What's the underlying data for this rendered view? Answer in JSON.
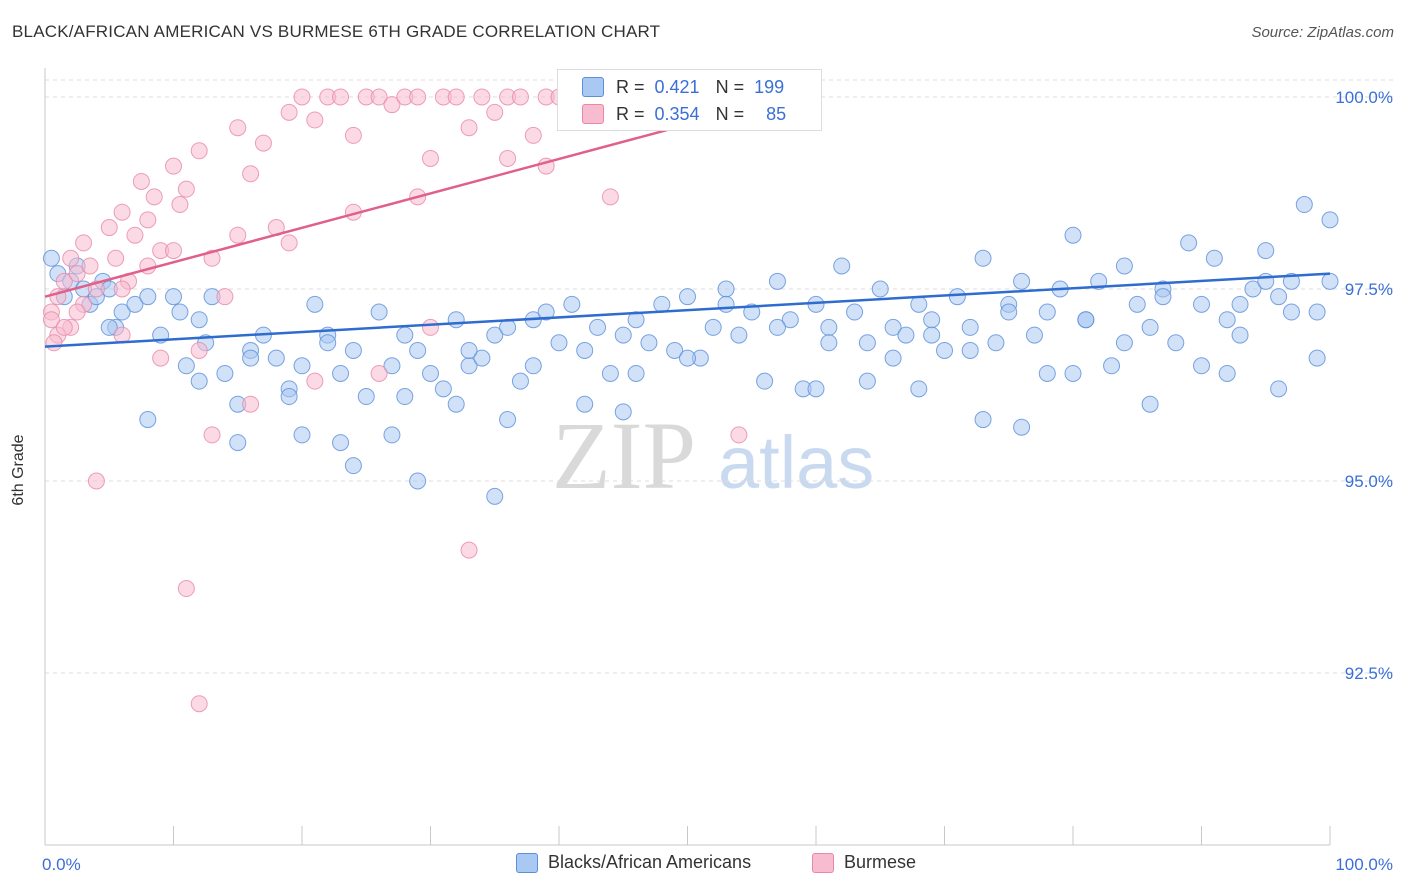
{
  "header": {
    "title": "BLACK/AFRICAN AMERICAN VS BURMESE 6TH GRADE CORRELATION CHART",
    "source": "Source: ZipAtlas.com"
  },
  "watermark": {
    "zip": "ZIP",
    "atlas": "atlas"
  },
  "colors": {
    "blue_fill": "#a9c8f2",
    "blue_stroke": "#5b8fd9",
    "blue_line": "#2e6ccf",
    "pink_fill": "#f8bcd0",
    "pink_stroke": "#e888a6",
    "pink_line": "#e0608a",
    "tick_label": "#3a6fd8"
  },
  "legend": {
    "rows": [
      {
        "r_label": "R =",
        "r_value": "0.421",
        "n_label": "N =",
        "n_value": "199",
        "color": "#a9c8f2"
      },
      {
        "r_label": "R =",
        "r_value": "0.354",
        "n_label": "N =",
        "n_value": "85",
        "color": "#f8bcd0"
      }
    ]
  },
  "chart_data": {
    "type": "scatter",
    "title": "BLACK/AFRICAN AMERICAN VS BURMESE 6TH GRADE CORRELATION CHART",
    "xlabel": "",
    "ylabel": "6th Grade",
    "xlim": [
      0,
      100
    ],
    "ylim": [
      90.0,
      100.4
    ],
    "x_tick_labels": [
      "0.0%",
      "100.0%"
    ],
    "y_ticks": [
      92.5,
      95.0,
      97.5,
      100.0
    ],
    "y_tick_labels": [
      "92.5%",
      "95.0%",
      "97.5%",
      "100.0%"
    ],
    "grid": true,
    "legend_placement": "top-center",
    "series": [
      {
        "name": "Blacks/African Americans",
        "color": "#a9c8f2",
        "trend": {
          "x": [
            0,
            100
          ],
          "y": [
            96.75,
            97.7
          ]
        },
        "points": [
          [
            0.5,
            97.9
          ],
          [
            1,
            97.7
          ],
          [
            1.5,
            97.4
          ],
          [
            2,
            97.6
          ],
          [
            2.5,
            97.8
          ],
          [
            3,
            97.5
          ],
          [
            3.5,
            97.3
          ],
          [
            4,
            97.4
          ],
          [
            4.5,
            97.6
          ],
          [
            5,
            97.5
          ],
          [
            5.5,
            97.0
          ],
          [
            6,
            97.2
          ],
          [
            7,
            97.3
          ],
          [
            8,
            97.4
          ],
          [
            9,
            96.9
          ],
          [
            10,
            97.4
          ],
          [
            10.5,
            97.2
          ],
          [
            11,
            96.5
          ],
          [
            12,
            97.1
          ],
          [
            12.5,
            96.8
          ],
          [
            13,
            97.4
          ],
          [
            14,
            96.4
          ],
          [
            15,
            96.0
          ],
          [
            16,
            96.7
          ],
          [
            17,
            96.9
          ],
          [
            18,
            96.6
          ],
          [
            19,
            96.2
          ],
          [
            20,
            96.5
          ],
          [
            21,
            97.3
          ],
          [
            22,
            96.9
          ],
          [
            23,
            96.4
          ],
          [
            24,
            96.7
          ],
          [
            25,
            96.1
          ],
          [
            26,
            97.2
          ],
          [
            27,
            96.5
          ],
          [
            28,
            96.9
          ],
          [
            29,
            96.7
          ],
          [
            30,
            96.4
          ],
          [
            31,
            96.2
          ],
          [
            32,
            97.1
          ],
          [
            33,
            96.5
          ],
          [
            34,
            96.6
          ],
          [
            35,
            96.9
          ],
          [
            36,
            97.0
          ],
          [
            37,
            96.3
          ],
          [
            38,
            97.1
          ],
          [
            39,
            97.2
          ],
          [
            40,
            96.8
          ],
          [
            41,
            97.3
          ],
          [
            42,
            96.7
          ],
          [
            43,
            97.0
          ],
          [
            44,
            96.4
          ],
          [
            45,
            96.9
          ],
          [
            46,
            97.1
          ],
          [
            47,
            96.8
          ],
          [
            48,
            97.3
          ],
          [
            49,
            96.7
          ],
          [
            50,
            97.4
          ],
          [
            51,
            96.6
          ],
          [
            52,
            97.0
          ],
          [
            53,
            97.5
          ],
          [
            54,
            96.9
          ],
          [
            55,
            97.2
          ],
          [
            56,
            96.3
          ],
          [
            57,
            97.6
          ],
          [
            58,
            97.1
          ],
          [
            59,
            96.2
          ],
          [
            60,
            97.3
          ],
          [
            61,
            97.0
          ],
          [
            62,
            97.8
          ],
          [
            63,
            97.2
          ],
          [
            64,
            96.8
          ],
          [
            65,
            97.5
          ],
          [
            66,
            97.0
          ],
          [
            67,
            96.9
          ],
          [
            68,
            97.3
          ],
          [
            69,
            97.1
          ],
          [
            70,
            96.7
          ],
          [
            71,
            97.4
          ],
          [
            72,
            97.0
          ],
          [
            73,
            97.9
          ],
          [
            74,
            96.8
          ],
          [
            75,
            97.3
          ],
          [
            76,
            97.6
          ],
          [
            77,
            96.9
          ],
          [
            78,
            97.2
          ],
          [
            79,
            97.5
          ],
          [
            80,
            98.2
          ],
          [
            81,
            97.1
          ],
          [
            82,
            97.6
          ],
          [
            83,
            96.5
          ],
          [
            84,
            97.8
          ],
          [
            85,
            97.3
          ],
          [
            86,
            97.0
          ],
          [
            87,
            97.5
          ],
          [
            88,
            96.8
          ],
          [
            89,
            98.1
          ],
          [
            90,
            97.3
          ],
          [
            91,
            97.9
          ],
          [
            92,
            97.1
          ],
          [
            93,
            96.9
          ],
          [
            94,
            97.5
          ],
          [
            95,
            98.0
          ],
          [
            96,
            97.4
          ],
          [
            97,
            97.6
          ],
          [
            98,
            98.6
          ],
          [
            99,
            97.2
          ],
          [
            100,
            97.6
          ],
          [
            20,
            95.6
          ],
          [
            24,
            95.2
          ],
          [
            27,
            95.6
          ],
          [
            32,
            96.0
          ],
          [
            36,
            95.8
          ],
          [
            45,
            95.9
          ],
          [
            60,
            96.2
          ],
          [
            64,
            96.3
          ],
          [
            68,
            96.2
          ],
          [
            73,
            95.8
          ],
          [
            76,
            95.7
          ],
          [
            80,
            96.4
          ],
          [
            86,
            96.0
          ],
          [
            92,
            96.4
          ],
          [
            96,
            96.2
          ],
          [
            5,
            97.0
          ],
          [
            12,
            96.3
          ],
          [
            16,
            96.6
          ],
          [
            19,
            96.1
          ],
          [
            22,
            96.8
          ],
          [
            28,
            96.1
          ],
          [
            33,
            96.7
          ],
          [
            38,
            96.5
          ],
          [
            42,
            96.0
          ],
          [
            46,
            96.4
          ],
          [
            50,
            96.6
          ],
          [
            53,
            97.3
          ],
          [
            57,
            97.0
          ],
          [
            61,
            96.8
          ],
          [
            66,
            96.6
          ],
          [
            69,
            96.9
          ],
          [
            72,
            96.7
          ],
          [
            75,
            97.2
          ],
          [
            78,
            96.4
          ],
          [
            81,
            97.1
          ],
          [
            84,
            96.8
          ],
          [
            87,
            97.4
          ],
          [
            90,
            96.5
          ],
          [
            93,
            97.3
          ],
          [
            95,
            97.6
          ],
          [
            97,
            97.2
          ],
          [
            99,
            96.6
          ],
          [
            100,
            98.4
          ],
          [
            8,
            95.8
          ],
          [
            15,
            95.5
          ],
          [
            23,
            95.5
          ],
          [
            29,
            95.0
          ],
          [
            35,
            94.8
          ]
        ]
      },
      {
        "name": "Burmese",
        "color": "#f8bcd0",
        "trend": {
          "x": [
            0,
            58
          ],
          "y": [
            97.4,
            100.0
          ]
        },
        "points": [
          [
            0.5,
            97.2
          ],
          [
            1,
            97.4
          ],
          [
            1.5,
            97.6
          ],
          [
            2,
            97.9
          ],
          [
            2.5,
            97.7
          ],
          [
            3,
            98.1
          ],
          [
            3.5,
            97.8
          ],
          [
            4,
            97.5
          ],
          [
            5,
            98.3
          ],
          [
            5.5,
            97.9
          ],
          [
            6,
            98.5
          ],
          [
            6.5,
            97.6
          ],
          [
            7,
            98.2
          ],
          [
            7.5,
            98.9
          ],
          [
            8,
            98.4
          ],
          [
            8.5,
            98.7
          ],
          [
            9,
            98.0
          ],
          [
            10,
            99.1
          ],
          [
            10.5,
            98.6
          ],
          [
            11,
            98.8
          ],
          [
            12,
            99.3
          ],
          [
            13,
            97.9
          ],
          [
            14,
            97.4
          ],
          [
            15,
            99.6
          ],
          [
            16,
            99.0
          ],
          [
            17,
            99.4
          ],
          [
            18,
            98.3
          ],
          [
            19,
            99.8
          ],
          [
            20,
            100.0
          ],
          [
            21,
            99.7
          ],
          [
            22,
            100.0
          ],
          [
            23,
            100.0
          ],
          [
            24,
            99.5
          ],
          [
            25,
            100.0
          ],
          [
            26,
            100.0
          ],
          [
            27,
            99.9
          ],
          [
            28,
            100.0
          ],
          [
            29,
            100.0
          ],
          [
            30,
            99.2
          ],
          [
            31,
            100.0
          ],
          [
            32,
            100.0
          ],
          [
            33,
            99.6
          ],
          [
            34,
            100.0
          ],
          [
            35,
            99.8
          ],
          [
            36,
            100.0
          ],
          [
            37,
            100.0
          ],
          [
            38,
            99.5
          ],
          [
            39,
            100.0
          ],
          [
            40,
            100.0
          ],
          [
            41,
            99.7
          ],
          [
            42,
            100.0
          ],
          [
            43,
            100.0
          ],
          [
            44,
            98.7
          ],
          [
            45,
            100.0
          ],
          [
            2,
            97.0
          ],
          [
            6,
            96.9
          ],
          [
            9,
            96.6
          ],
          [
            12,
            96.7
          ],
          [
            16,
            96.0
          ],
          [
            21,
            96.3
          ],
          [
            26,
            96.4
          ],
          [
            30,
            97.0
          ],
          [
            13,
            95.6
          ],
          [
            4,
            95.0
          ],
          [
            11,
            93.6
          ],
          [
            12,
            92.1
          ],
          [
            33,
            94.1
          ],
          [
            54,
            95.6
          ],
          [
            58,
            100.0
          ],
          [
            50,
            99.8
          ],
          [
            47,
            100.0
          ],
          [
            36,
            99.2
          ],
          [
            39,
            99.1
          ],
          [
            29,
            98.7
          ],
          [
            24,
            98.5
          ],
          [
            19,
            98.1
          ],
          [
            15,
            98.2
          ],
          [
            10,
            98.0
          ],
          [
            8,
            97.8
          ],
          [
            6,
            97.5
          ],
          [
            3,
            97.3
          ],
          [
            1,
            96.9
          ],
          [
            0.5,
            97.1
          ],
          [
            0.7,
            96.8
          ],
          [
            1.5,
            97.0
          ],
          [
            2.5,
            97.2
          ]
        ]
      }
    ]
  },
  "bottom_legend": [
    {
      "label": "Blacks/African Americans",
      "color": "#a9c8f2"
    },
    {
      "label": "Burmese",
      "color": "#f8bcd0"
    }
  ]
}
